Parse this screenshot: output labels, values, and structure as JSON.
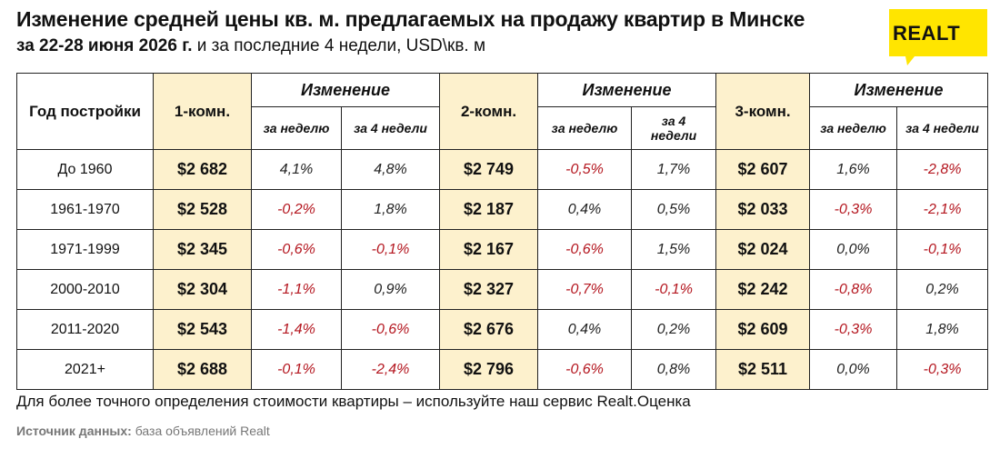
{
  "title_line1": "Изменение средней цены кв. м. предлагаемых на продажу квартир в Минске",
  "title_line2_bold": "за 22-28 июня 2026 г.",
  "title_line2_rest": " и за последние 4 недели, USD\\кв. м",
  "logo": {
    "text": "REALT",
    "accent": "#ffe500"
  },
  "colors": {
    "highlight": "#fdf1cd",
    "negative": "#b4161f"
  },
  "header": {
    "year": "Год постройки",
    "room1": "1-комн.",
    "room2": "2-комн.",
    "room3": "3-комн.",
    "change": "Изменение",
    "week": "за неделю",
    "four_weeks": "за 4 недели"
  },
  "chart_data": {
    "type": "table",
    "title": "Изменение средней цены кв. м. предлагаемых на продажу квартир в Минске за 22-28 июня 2026 г. и за последние 4 недели, USD\\кв. м",
    "columns": [
      "Год постройки",
      "1-комн.",
      "за неделю",
      "за 4 недели",
      "2-комн.",
      "за неделю",
      "за 4 недели",
      "3-комн.",
      "за неделю",
      "за 4 недели"
    ],
    "rows": [
      {
        "year": "До 1960",
        "c1": {
          "price": "$2 682",
          "week": "4,1%",
          "month": "4,8%"
        },
        "c2": {
          "price": "$2 749",
          "week": "-0,5%",
          "month": "1,7%"
        },
        "c3": {
          "price": "$2 607",
          "week": "1,6%",
          "month": "-2,8%"
        }
      },
      {
        "year": "1961-1970",
        "c1": {
          "price": "$2 528",
          "week": "-0,2%",
          "month": "1,8%"
        },
        "c2": {
          "price": "$2 187",
          "week": "0,4%",
          "month": "0,5%"
        },
        "c3": {
          "price": "$2 033",
          "week": "-0,3%",
          "month": "-2,1%"
        }
      },
      {
        "year": "1971-1999",
        "c1": {
          "price": "$2 345",
          "week": "-0,6%",
          "month": "-0,1%"
        },
        "c2": {
          "price": "$2 167",
          "week": "-0,6%",
          "month": "1,5%"
        },
        "c3": {
          "price": "$2 024",
          "week": "0,0%",
          "month": "-0,1%"
        }
      },
      {
        "year": "2000-2010",
        "c1": {
          "price": "$2 304",
          "week": "-1,1%",
          "month": "0,9%"
        },
        "c2": {
          "price": "$2 327",
          "week": "-0,7%",
          "month": "-0,1%"
        },
        "c3": {
          "price": "$2 242",
          "week": "-0,8%",
          "month": "0,2%"
        }
      },
      {
        "year": "2011-2020",
        "c1": {
          "price": "$2 543",
          "week": "-1,4%",
          "month": "-0,6%"
        },
        "c2": {
          "price": "$2 676",
          "week": "0,4%",
          "month": "0,2%"
        },
        "c3": {
          "price": "$2 609",
          "week": "-0,3%",
          "month": "1,8%"
        }
      },
      {
        "year": "2021+",
        "c1": {
          "price": "$2 688",
          "week": "-0,1%",
          "month": "-2,4%"
        },
        "c2": {
          "price": "$2 796",
          "week": "-0,6%",
          "month": "0,8%"
        },
        "c3": {
          "price": "$2 511",
          "week": "0,0%",
          "month": "-0,3%"
        }
      }
    ]
  },
  "footer": {
    "note": "Для более точного определения стоимости квартиры – используйте наш сервис Realt.Оценка",
    "source_label": "Источник данных:",
    "source_value": " база объявлений Realt"
  }
}
